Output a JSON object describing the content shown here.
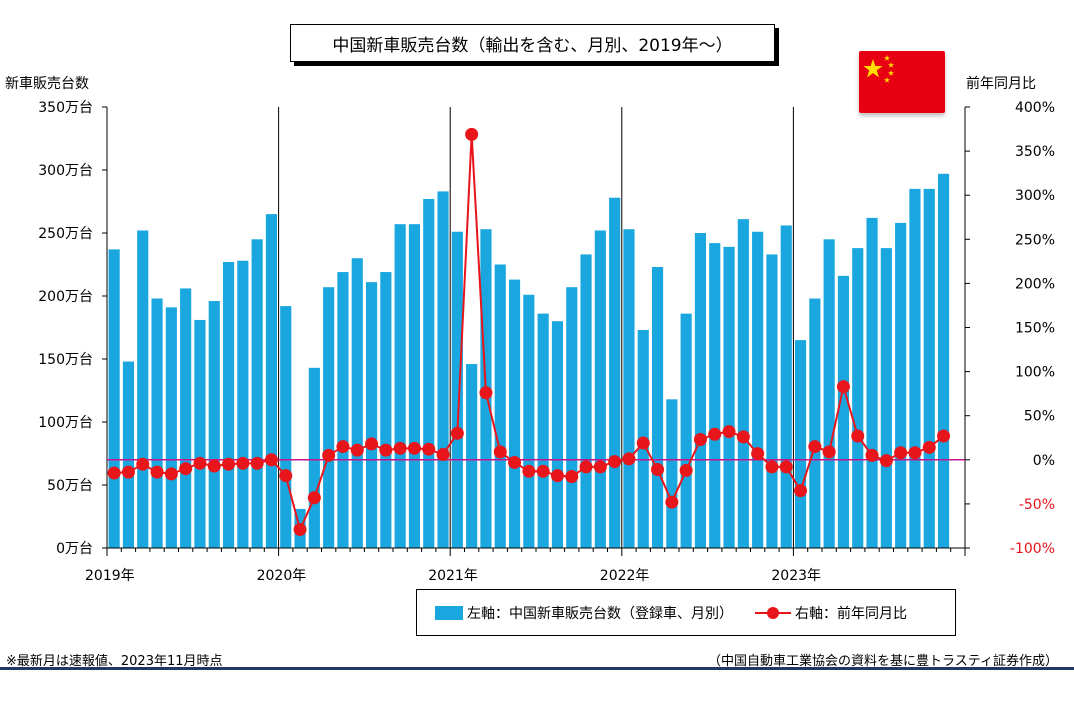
{
  "title": "中国新車販売台数（輸出を含む、月別、2019年〜）",
  "left_axis_title": "新車販売台数",
  "right_axis_title": "前年同月比",
  "legend": {
    "bar_label": "左軸：中国新車販売台数（登録車、月別）",
    "line_label": "右軸：前年同月比"
  },
  "footnote": "※最新月は速報値、2023年11月時点",
  "source": "（中国自動車工業協会の資料を基に豊トラスティ証券作成）",
  "colors": {
    "bar": "#1aa7e0",
    "line": "#e8151b",
    "zero_line": "#c8148c",
    "flag": "#e60012",
    "star": "#ffde00"
  },
  "flag_icon": "china-flag",
  "chart_data": {
    "type": "bar+line",
    "x_ticks": [
      "2019年",
      "2020年",
      "2021年",
      "2022年",
      "2023年"
    ],
    "y_left": {
      "ticks": [
        "0万台",
        "50万台",
        "100万台",
        "150万台",
        "200万台",
        "250万台",
        "300万台",
        "350万台"
      ],
      "range": [
        0,
        350
      ],
      "unit": "万台"
    },
    "y_right": {
      "ticks": [
        "-100%",
        "-50%",
        "0%",
        "50%",
        "100%",
        "150%",
        "200%",
        "250%",
        "300%",
        "350%",
        "400%"
      ],
      "range": [
        -100,
        400
      ],
      "unit": "%"
    },
    "months": [
      "2019-01",
      "2019-02",
      "2019-03",
      "2019-04",
      "2019-05",
      "2019-06",
      "2019-07",
      "2019-08",
      "2019-09",
      "2019-10",
      "2019-11",
      "2019-12",
      "2020-01",
      "2020-02",
      "2020-03",
      "2020-04",
      "2020-05",
      "2020-06",
      "2020-07",
      "2020-08",
      "2020-09",
      "2020-10",
      "2020-11",
      "2020-12",
      "2021-01",
      "2021-02",
      "2021-03",
      "2021-04",
      "2021-05",
      "2021-06",
      "2021-07",
      "2021-08",
      "2021-09",
      "2021-10",
      "2021-11",
      "2021-12",
      "2022-01",
      "2022-02",
      "2022-03",
      "2022-04",
      "2022-05",
      "2022-06",
      "2022-07",
      "2022-08",
      "2022-09",
      "2022-10",
      "2022-11",
      "2022-12",
      "2023-01",
      "2023-02",
      "2023-03",
      "2023-04",
      "2023-05",
      "2023-06",
      "2023-07",
      "2023-08",
      "2023-09",
      "2023-10",
      "2023-11"
    ],
    "series": [
      {
        "name": "左軸：中国新車販売台数（登録車、月別）",
        "axis": "left",
        "type": "bar",
        "values": [
          237,
          148,
          252,
          198,
          191,
          206,
          181,
          196,
          227,
          228,
          245,
          265,
          192,
          31,
          143,
          207,
          219,
          230,
          211,
          219,
          257,
          257,
          277,
          283,
          251,
          146,
          253,
          225,
          213,
          201,
          186,
          180,
          207,
          233,
          252,
          278,
          253,
          173,
          223,
          118,
          186,
          250,
          242,
          239,
          261,
          251,
          233,
          256,
          165,
          198,
          245,
          216,
          238,
          262,
          238,
          258,
          285,
          285,
          297
        ]
      },
      {
        "name": "右軸：前年同月比",
        "axis": "right",
        "type": "line",
        "values": [
          -15,
          -14,
          -5,
          -14,
          -16,
          -10,
          -4,
          -7,
          -5,
          -4,
          -4,
          0,
          -18,
          -79,
          -43,
          5,
          15,
          11,
          18,
          11,
          13,
          13,
          12,
          6,
          30,
          369,
          76,
          9,
          -3,
          -13,
          -13,
          -18,
          -19,
          -8,
          -8,
          -2,
          1,
          19,
          -11,
          -48,
          -12,
          23,
          29,
          32,
          26,
          7,
          -8,
          -8,
          -35,
          15,
          9,
          83,
          27,
          5,
          -1,
          8,
          8,
          14,
          27
        ]
      }
    ],
    "year_dividers": true,
    "zero_reference_line": "0%"
  }
}
